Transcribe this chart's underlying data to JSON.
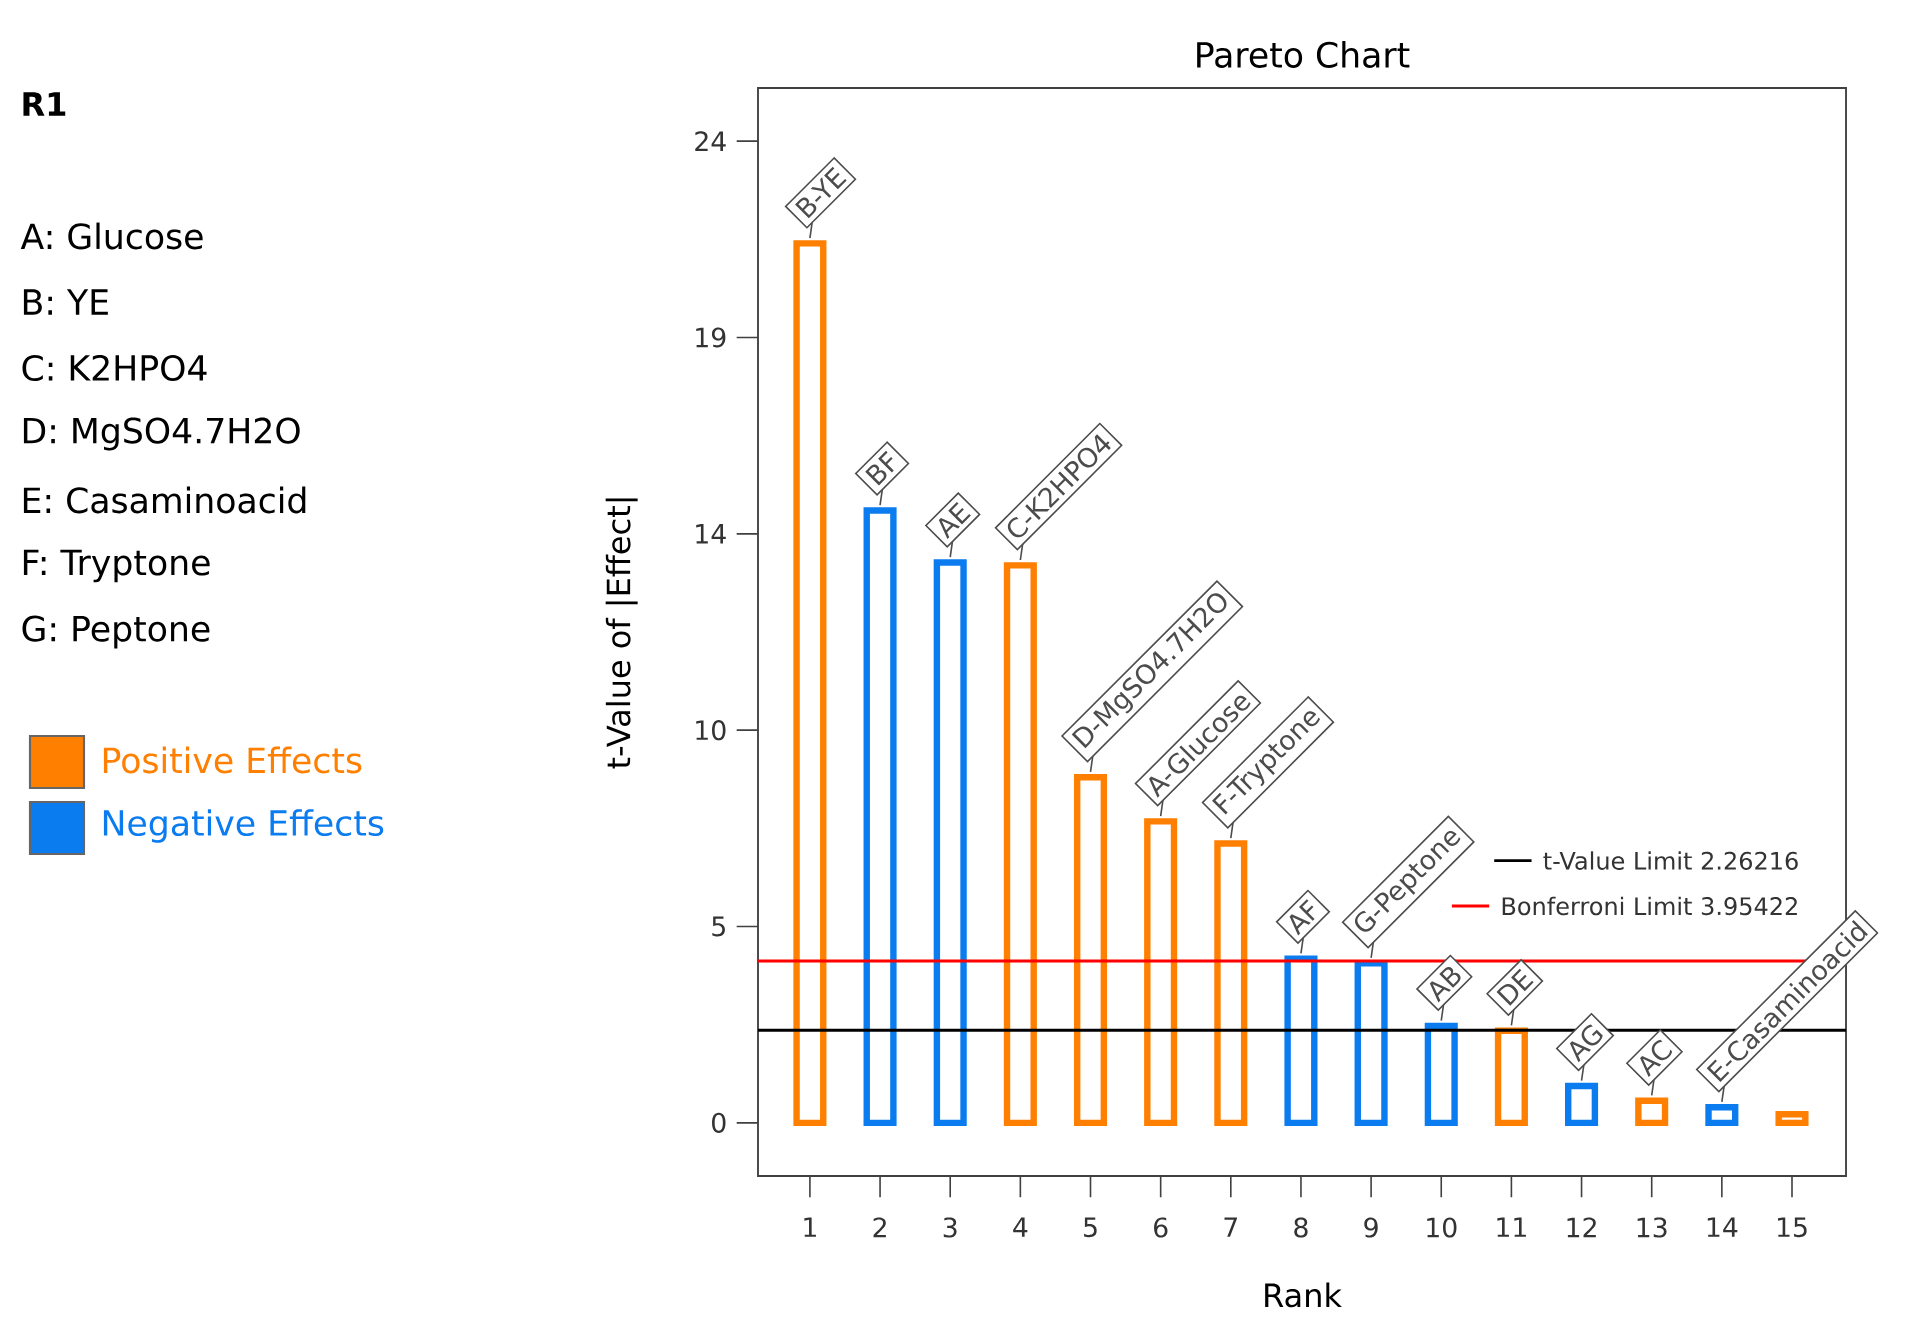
{
  "chart_data": {
    "type": "bar",
    "title": "Pareto Chart",
    "xlabel": "Rank",
    "ylabel": "t-Value of |Effect|",
    "categories": [
      "1",
      "2",
      "3",
      "4",
      "5",
      "6",
      "7",
      "8",
      "9",
      "10",
      "11",
      "12",
      "13",
      "14",
      "15"
    ],
    "series": [
      {
        "name": "Positive Effects",
        "color": "#ff7f00",
        "values": [
          21.5,
          null,
          null,
          13.63,
          8.45,
          7.37,
          6.83,
          null,
          null,
          null,
          2.25,
          null,
          0.54,
          null,
          0.21
        ]
      },
      {
        "name": "Negative Effects",
        "color": "#0a7cf0",
        "values": [
          null,
          14.97,
          13.7,
          null,
          null,
          null,
          null,
          4.01,
          3.9,
          2.37,
          null,
          0.9,
          null,
          0.38,
          null
        ]
      }
    ],
    "ylim": [
      -1.3,
      25.3
    ],
    "yticks": [
      0,
      {
        "value": 4.8,
        "label": "5"
      },
      {
        "value": 9.6,
        "label": "10"
      },
      {
        "value": 14.4,
        "label": "14"
      },
      {
        "value": 19.2,
        "label": "19"
      },
      24
    ],
    "ref_lines": [
      {
        "axis": "y",
        "value": 3.95422,
        "label": "Bonferroni Limit 3.95422",
        "color": "#ff0000"
      },
      {
        "axis": "y",
        "value": 2.26216,
        "label": "t-Value Limit 2.26216",
        "color": "#000000"
      }
    ],
    "legend": "left",
    "annotations": [
      "R1",
      "A: Glucose",
      "B: YE",
      "C: K2HPO4",
      "D: MgSO4.7H2O",
      "E: Casaminoacid",
      "F: Tryptone",
      "G: Peptone",
      {
        "text": "B-YE",
        "x": "1",
        "y": 21.5
      },
      {
        "text": "BF",
        "x": "2",
        "y": 14.97
      },
      {
        "text": "AE",
        "x": "3",
        "y": 13.7
      },
      {
        "text": "C-K2HPO4",
        "x": "4",
        "y": 13.63
      },
      {
        "text": "D-MgSO4.7H2O",
        "x": "5",
        "y": 8.45
      },
      {
        "text": "A-Glucose",
        "x": "6",
        "y": 7.37
      },
      {
        "text": "F-Tryptone",
        "x": "7",
        "y": 6.83
      },
      {
        "text": "AF",
        "x": "8",
        "y": 4.01
      },
      {
        "text": "G-Peptone",
        "x": "9",
        "y": 3.9
      },
      {
        "text": "AB",
        "x": "10",
        "y": 2.37
      },
      {
        "text": "DE",
        "x": "11",
        "y": 2.25
      },
      {
        "text": "AG",
        "x": "12",
        "y": 0.9
      },
      {
        "text": "AC",
        "x": "13",
        "y": 0.54
      },
      {
        "text": "E-Casaminoacid",
        "x": "14",
        "y": 0.38
      }
    ]
  }
}
